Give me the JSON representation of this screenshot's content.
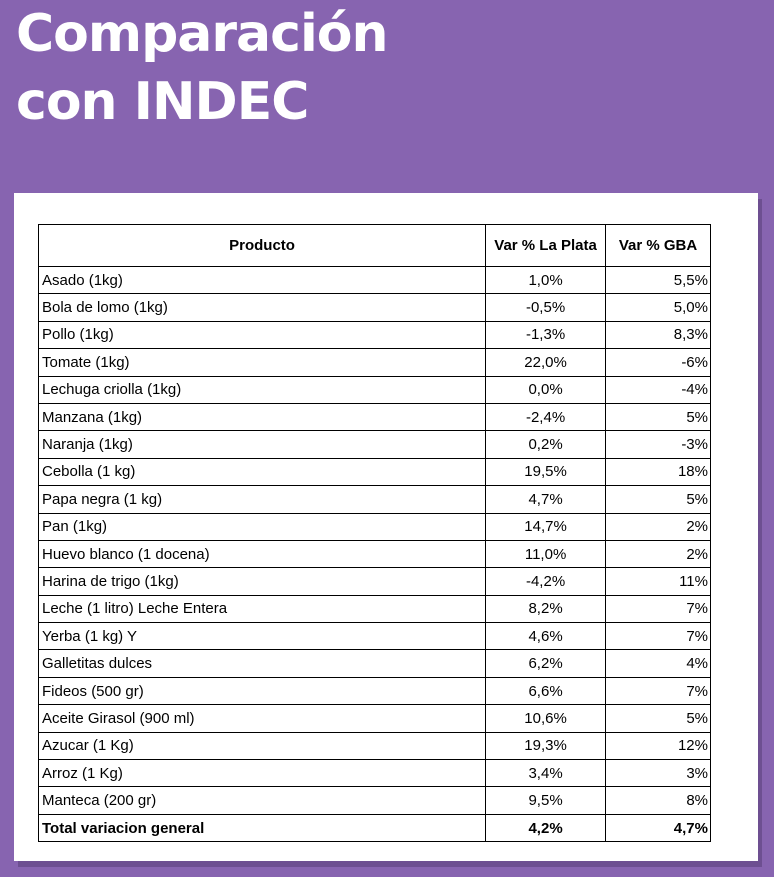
{
  "title": {
    "line1": "Comparación",
    "line2": "con INDEC"
  },
  "table": {
    "headers": {
      "product": "Producto",
      "la_plata": "Var % La Plata",
      "gba": "Var % GBA"
    },
    "rows": [
      {
        "product": "Asado (1kg)",
        "la_plata": "1,0%",
        "gba": "5,5%"
      },
      {
        "product": "Bola de lomo (1kg)",
        "la_plata": "-0,5%",
        "gba": "5,0%"
      },
      {
        "product": "Pollo (1kg)",
        "la_plata": "-1,3%",
        "gba": "8,3%"
      },
      {
        "product": "Tomate (1kg)",
        "la_plata": "22,0%",
        "gba": "-6%"
      },
      {
        "product": "Lechuga criolla (1kg)",
        "la_plata": "0,0%",
        "gba": "-4%"
      },
      {
        "product": "Manzana (1kg)",
        "la_plata": "-2,4%",
        "gba": "5%"
      },
      {
        "product": "Naranja (1kg)",
        "la_plata": "0,2%",
        "gba": "-3%"
      },
      {
        "product": "Cebolla (1 kg)",
        "la_plata": "19,5%",
        "gba": "18%"
      },
      {
        "product": "Papa negra (1 kg)",
        "la_plata": "4,7%",
        "gba": "5%"
      },
      {
        "product": "Pan (1kg)",
        "la_plata": "14,7%",
        "gba": "2%"
      },
      {
        "product": "Huevo blanco (1 docena)",
        "la_plata": "11,0%",
        "gba": "2%"
      },
      {
        "product": "Harina de trigo (1kg)",
        "la_plata": "-4,2%",
        "gba": "11%"
      },
      {
        "product": "Leche (1 litro) Leche Entera",
        "la_plata": "8,2%",
        "gba": "7%"
      },
      {
        "product": "Yerba (1 kg) Y",
        "la_plata": "4,6%",
        "gba": "7%"
      },
      {
        "product": "Galletitas dulces",
        "la_plata": "6,2%",
        "gba": "4%"
      },
      {
        "product": "Fideos (500 gr)",
        "la_plata": "6,6%",
        "gba": "7%"
      },
      {
        "product": "Aceite Girasol (900 ml)",
        "la_plata": "10,6%",
        "gba": "5%"
      },
      {
        "product": "Azucar (1 Kg)",
        "la_plata": "19,3%",
        "gba": "12%"
      },
      {
        "product": "Arroz (1 Kg)",
        "la_plata": "3,4%",
        "gba": "3%"
      },
      {
        "product": "Manteca (200 gr)",
        "la_plata": "9,5%",
        "gba": "8%"
      }
    ],
    "total": {
      "product": "Total variacion general",
      "la_plata": "4,2%",
      "gba": "4,7%"
    }
  },
  "colors": {
    "background": "#8764b0",
    "card": "#ffffff",
    "title": "#ffffff"
  }
}
